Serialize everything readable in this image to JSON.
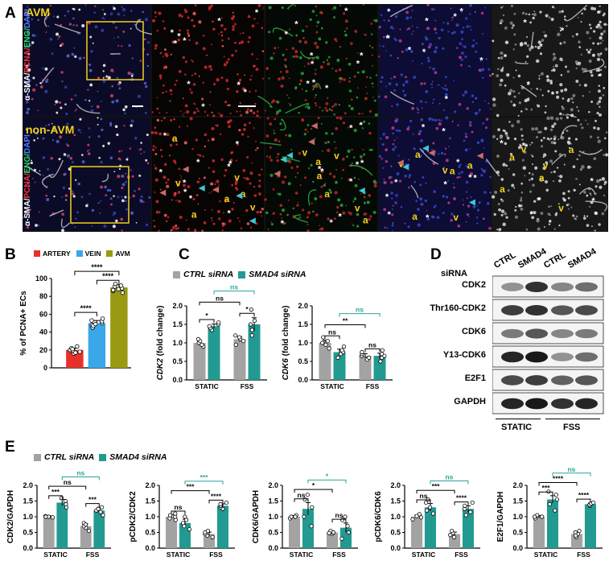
{
  "panels": {
    "a": "A",
    "b": "B",
    "c": "C",
    "d": "D",
    "e": "E"
  },
  "panel_a": {
    "avm_label": "AVM",
    "non_avm_label": "non-AVM",
    "stain_parts": [
      "α-SMA/",
      "PCNA/",
      "ENG/",
      "DAPI"
    ],
    "marker_star": "*",
    "marker_artery": "a",
    "marker_vein": "v"
  },
  "colors": {
    "artery": "#e8302a",
    "vein": "#3aa7e8",
    "avm": "#9a9a12",
    "ctrl": "#a3a3a3",
    "smad4": "#229a91",
    "sig_teal": "#2aa39a"
  },
  "legend_b": [
    {
      "label": "ARTERY",
      "color": "#e8302a"
    },
    {
      "label": "VEIN",
      "color": "#3aa7e8"
    },
    {
      "label": "AVM",
      "color": "#9a9a12"
    }
  ],
  "legend_c": [
    {
      "label": "CTRL siRNA",
      "color": "#a3a3a3"
    },
    {
      "label": "SMAD4 siRNA",
      "color": "#229a91"
    }
  ],
  "legend_e": [
    {
      "label": "CTRL siRNA",
      "color": "#a3a3a3"
    },
    {
      "label": "SMAD4 siRNA",
      "color": "#229a91"
    }
  ],
  "blot": {
    "sirna_label": "siRNA",
    "lanes": [
      "CTRL",
      "SMAD4",
      "CTRL",
      "SMAD4"
    ],
    "rows": [
      "CDK2",
      "Thr160-CDK2",
      "CDK6",
      "Y13-CDK6",
      "E2F1",
      "GAPDH"
    ],
    "band_intensity": [
      [
        0.45,
        0.85,
        0.5,
        0.6
      ],
      [
        0.8,
        0.85,
        0.7,
        0.75
      ],
      [
        0.55,
        0.7,
        0.5,
        0.55
      ],
      [
        0.9,
        0.95,
        0.45,
        0.6
      ],
      [
        0.75,
        0.8,
        0.65,
        0.7
      ],
      [
        0.9,
        0.95,
        0.85,
        0.9
      ]
    ],
    "groups": [
      "STATIC",
      "FSS"
    ]
  },
  "chart_data": [
    {
      "id": "B",
      "type": "bar",
      "ylabel": "% of PCNA+ ECs",
      "ylim": [
        0,
        100
      ],
      "yticks": [
        0,
        20,
        40,
        60,
        80,
        100
      ],
      "categories": [
        "ARTERY",
        "VEIN",
        "AVM"
      ],
      "values": [
        20,
        50,
        90
      ],
      "errors": [
        2,
        3,
        3
      ],
      "colors": [
        "#e8302a",
        "#3aa7e8",
        "#9a9a12"
      ],
      "points": [
        [
          16,
          18,
          20,
          22,
          24,
          19,
          21,
          17
        ],
        [
          45,
          48,
          50,
          52,
          55,
          47,
          53,
          49
        ],
        [
          84,
          86,
          89,
          91,
          94,
          88,
          92,
          87
        ]
      ],
      "sig": [
        {
          "from": 0,
          "to": 1,
          "label": "****"
        },
        {
          "from": 1,
          "to": 2,
          "label": "****"
        },
        {
          "from": 0,
          "to": 2,
          "label": "****"
        }
      ]
    },
    {
      "id": "C1",
      "type": "bar",
      "ylabel": "CDK2 (fold change)",
      "ylabel_gene": "CDK2",
      "ylabel_rest": " (fold change)",
      "ylim": [
        0,
        2.0
      ],
      "yticks": [
        0,
        0.5,
        1.0,
        1.5,
        2.0
      ],
      "groups": [
        "STATIC",
        "FSS"
      ],
      "series": [
        {
          "name": "CTRL siRNA",
          "values": [
            1.0,
            1.1
          ]
        },
        {
          "name": "SMAD4 siRNA",
          "values": [
            1.45,
            1.5
          ]
        }
      ],
      "errors": [
        [
          0.05,
          0.07
        ],
        [
          0.06,
          0.18
        ]
      ],
      "points": [
        [
          [
            0.9,
            0.95,
            1.0,
            1.05,
            1.1
          ],
          [
            0.95,
            1.05,
            1.1,
            1.2,
            1.15
          ]
        ],
        [
          [
            1.35,
            1.4,
            1.45,
            1.5,
            1.55
          ],
          [
            1.2,
            1.35,
            1.5,
            1.6,
            1.9
          ]
        ]
      ],
      "sig": [
        {
          "a": [
            0,
            0
          ],
          "b": [
            0,
            1
          ],
          "label": "*",
          "teal": false,
          "level": 0
        },
        {
          "a": [
            1,
            0
          ],
          "b": [
            1,
            1
          ],
          "label": "*",
          "teal": false,
          "level": 0
        },
        {
          "a": [
            0,
            0
          ],
          "b": [
            1,
            0
          ],
          "label": "ns",
          "teal": false,
          "level": 1
        },
        {
          "a": [
            0,
            1
          ],
          "b": [
            1,
            1
          ],
          "label": "ns",
          "teal": true,
          "level": 2
        }
      ]
    },
    {
      "id": "C2",
      "type": "bar",
      "ylabel": "CDK6 (fold change)",
      "ylabel_gene": "CDK6",
      "ylabel_rest": " (fold change)",
      "ylim": [
        0,
        2.0
      ],
      "yticks": [
        0,
        0.5,
        1.0,
        1.5,
        2.0
      ],
      "groups": [
        "STATIC",
        "FSS"
      ],
      "series": [
        {
          "name": "CTRL siRNA",
          "values": [
            1.0,
            0.65
          ]
        },
        {
          "name": "SMAD4 siRNA",
          "values": [
            0.75,
            0.65
          ]
        }
      ],
      "errors": [
        [
          0.07,
          0.06
        ],
        [
          0.08,
          0.07
        ]
      ],
      "points": [
        [
          [
            0.85,
            0.95,
            1.0,
            1.05,
            1.15
          ],
          [
            0.55,
            0.6,
            0.65,
            0.7,
            0.75
          ]
        ],
        [
          [
            0.6,
            0.7,
            0.75,
            0.8,
            0.9
          ],
          [
            0.5,
            0.6,
            0.65,
            0.7,
            0.8
          ]
        ]
      ],
      "sig": [
        {
          "a": [
            0,
            0
          ],
          "b": [
            0,
            1
          ],
          "label": "ns",
          "teal": false,
          "level": 0
        },
        {
          "a": [
            1,
            0
          ],
          "b": [
            1,
            1
          ],
          "label": "ns",
          "teal": false,
          "level": 0
        },
        {
          "a": [
            0,
            0
          ],
          "b": [
            1,
            0
          ],
          "label": "**",
          "teal": false,
          "level": 1
        },
        {
          "a": [
            0,
            1
          ],
          "b": [
            1,
            1
          ],
          "label": "ns",
          "teal": true,
          "level": 2
        }
      ]
    },
    {
      "id": "E1",
      "type": "bar",
      "ylabel": "CDK2/GAPDH",
      "ylim": [
        0,
        2.0
      ],
      "yticks": [
        0,
        0.5,
        1.0,
        1.5,
        2.0
      ],
      "groups": [
        "STATIC",
        "FSS"
      ],
      "series": [
        {
          "name": "CTRL siRNA",
          "values": [
            1.0,
            0.7
          ]
        },
        {
          "name": "SMAD4 siRNA",
          "values": [
            1.45,
            1.2
          ]
        }
      ],
      "errors": [
        [
          0.03,
          0.07
        ],
        [
          0.1,
          0.1
        ]
      ],
      "points": [
        [
          [
            0.98,
            1.0,
            1.02,
            1.0
          ],
          [
            0.55,
            0.65,
            0.7,
            0.8,
            0.75
          ]
        ],
        [
          [
            1.3,
            1.4,
            1.5,
            1.6
          ],
          [
            1.05,
            1.15,
            1.2,
            1.3,
            1.25
          ]
        ]
      ],
      "sig": [
        {
          "a": [
            0,
            0
          ],
          "b": [
            0,
            1
          ],
          "label": "***",
          "teal": false,
          "level": 0
        },
        {
          "a": [
            1,
            0
          ],
          "b": [
            1,
            1
          ],
          "label": "***",
          "teal": false,
          "level": 0
        },
        {
          "a": [
            0,
            0
          ],
          "b": [
            1,
            0
          ],
          "label": "ns",
          "teal": false,
          "level": 1
        },
        {
          "a": [
            0,
            1
          ],
          "b": [
            1,
            1
          ],
          "label": "ns",
          "teal": true,
          "level": 2
        }
      ]
    },
    {
      "id": "E2",
      "type": "bar",
      "ylabel": "pCDK2/CDK2",
      "ylim": [
        0,
        2.0
      ],
      "yticks": [
        0,
        0.5,
        1.0,
        1.5,
        2.0
      ],
      "groups": [
        "STATIC",
        "FSS"
      ],
      "series": [
        {
          "name": "CTRL siRNA",
          "values": [
            1.0,
            0.45
          ]
        },
        {
          "name": "SMAD4 siRNA",
          "values": [
            0.8,
            1.35
          ]
        }
      ],
      "errors": [
        [
          0.06,
          0.06
        ],
        [
          0.12,
          0.06
        ]
      ],
      "points": [
        [
          [
            0.9,
            0.95,
            1.0,
            1.05,
            1.1
          ],
          [
            0.35,
            0.4,
            0.45,
            0.5,
            0.55
          ]
        ],
        [
          [
            0.6,
            0.7,
            0.8,
            0.9,
            1.0
          ],
          [
            1.25,
            1.3,
            1.35,
            1.4,
            1.45
          ]
        ]
      ],
      "sig": [
        {
          "a": [
            0,
            0
          ],
          "b": [
            0,
            1
          ],
          "label": "ns",
          "teal": false,
          "level": 0
        },
        {
          "a": [
            1,
            0
          ],
          "b": [
            1,
            1
          ],
          "label": "****",
          "teal": false,
          "level": 0
        },
        {
          "a": [
            0,
            0
          ],
          "b": [
            1,
            0
          ],
          "label": "***",
          "teal": false,
          "level": 1
        },
        {
          "a": [
            0,
            1
          ],
          "b": [
            1,
            1
          ],
          "label": "***",
          "teal": true,
          "level": 2
        }
      ]
    },
    {
      "id": "E3",
      "type": "bar",
      "ylabel": "CDK6/GAPDH",
      "ylim": [
        0,
        2.0
      ],
      "yticks": [
        0,
        0.5,
        1.0,
        1.5,
        2.0
      ],
      "groups": [
        "STATIC",
        "FSS"
      ],
      "series": [
        {
          "name": "CTRL siRNA",
          "values": [
            1.0,
            0.5
          ]
        },
        {
          "name": "SMAD4 siRNA",
          "values": [
            1.25,
            0.65
          ]
        }
      ],
      "errors": [
        [
          0.04,
          0.04
        ],
        [
          0.2,
          0.15
        ]
      ],
      "points": [
        [
          [
            0.95,
            1.0,
            1.05,
            1.0
          ],
          [
            0.45,
            0.5,
            0.55,
            0.5,
            0.48
          ]
        ],
        [
          [
            0.7,
            1.0,
            1.3,
            1.55,
            1.7
          ],
          [
            0.3,
            0.5,
            0.7,
            0.9,
            1.0
          ]
        ]
      ],
      "sig": [
        {
          "a": [
            0,
            0
          ],
          "b": [
            0,
            1
          ],
          "label": "ns",
          "teal": false,
          "level": 0
        },
        {
          "a": [
            1,
            0
          ],
          "b": [
            1,
            1
          ],
          "label": "ns",
          "teal": false,
          "level": 0
        },
        {
          "a": [
            0,
            0
          ],
          "b": [
            1,
            0
          ],
          "label": "*",
          "teal": false,
          "level": 1
        },
        {
          "a": [
            0,
            1
          ],
          "b": [
            1,
            1
          ],
          "label": "*",
          "teal": true,
          "level": 2
        }
      ]
    },
    {
      "id": "E4",
      "type": "bar",
      "ylabel": "pCDK6/CDK6",
      "ylim": [
        0,
        2.0
      ],
      "yticks": [
        0,
        0.5,
        1.0,
        1.5,
        2.0
      ],
      "groups": [
        "STATIC",
        "FSS"
      ],
      "series": [
        {
          "name": "CTRL siRNA",
          "values": [
            1.0,
            0.45
          ]
        },
        {
          "name": "SMAD4 siRNA",
          "values": [
            1.3,
            1.25
          ]
        }
      ],
      "errors": [
        [
          0.05,
          0.06
        ],
        [
          0.12,
          0.1
        ]
      ],
      "points": [
        [
          [
            0.92,
            0.98,
            1.02,
            1.08
          ],
          [
            0.35,
            0.42,
            0.48,
            0.55
          ]
        ],
        [
          [
            1.1,
            1.2,
            1.3,
            1.45,
            1.55
          ],
          [
            1.05,
            1.15,
            1.25,
            1.35,
            1.45
          ]
        ]
      ],
      "sig": [
        {
          "a": [
            0,
            0
          ],
          "b": [
            0,
            1
          ],
          "label": "ns",
          "teal": false,
          "level": 0
        },
        {
          "a": [
            1,
            0
          ],
          "b": [
            1,
            1
          ],
          "label": "****",
          "teal": false,
          "level": 0
        },
        {
          "a": [
            0,
            0
          ],
          "b": [
            1,
            0
          ],
          "label": "***",
          "teal": false,
          "level": 1
        },
        {
          "a": [
            0,
            1
          ],
          "b": [
            1,
            1
          ],
          "label": "ns",
          "teal": true,
          "level": 2
        }
      ]
    },
    {
      "id": "E5",
      "type": "bar",
      "ylabel": "E2F1/GAPDH",
      "ylim": [
        0,
        2.0
      ],
      "yticks": [
        0,
        0.5,
        1.0,
        1.5,
        2.0
      ],
      "groups": [
        "STATIC",
        "FSS"
      ],
      "series": [
        {
          "name": "CTRL siRNA",
          "values": [
            1.0,
            0.45
          ]
        },
        {
          "name": "SMAD4 siRNA",
          "values": [
            1.55,
            1.4
          ]
        }
      ],
      "errors": [
        [
          0.04,
          0.05
        ],
        [
          0.12,
          0.04
        ]
      ],
      "points": [
        [
          [
            0.95,
            1.0,
            1.05,
            1.0
          ],
          [
            0.35,
            0.45,
            0.5,
            0.55,
            0.4
          ]
        ],
        [
          [
            1.2,
            1.4,
            1.55,
            1.7,
            1.8
          ],
          [
            1.35,
            1.38,
            1.42,
            1.45
          ]
        ]
      ],
      "sig": [
        {
          "a": [
            0,
            0
          ],
          "b": [
            0,
            1
          ],
          "label": "***",
          "teal": false,
          "level": 0
        },
        {
          "a": [
            1,
            0
          ],
          "b": [
            1,
            1
          ],
          "label": "****",
          "teal": false,
          "level": 0
        },
        {
          "a": [
            0,
            0
          ],
          "b": [
            1,
            0
          ],
          "label": "****",
          "teal": false,
          "level": 1
        },
        {
          "a": [
            0,
            1
          ],
          "b": [
            1,
            1
          ],
          "label": "ns",
          "teal": true,
          "level": 2
        }
      ]
    }
  ]
}
